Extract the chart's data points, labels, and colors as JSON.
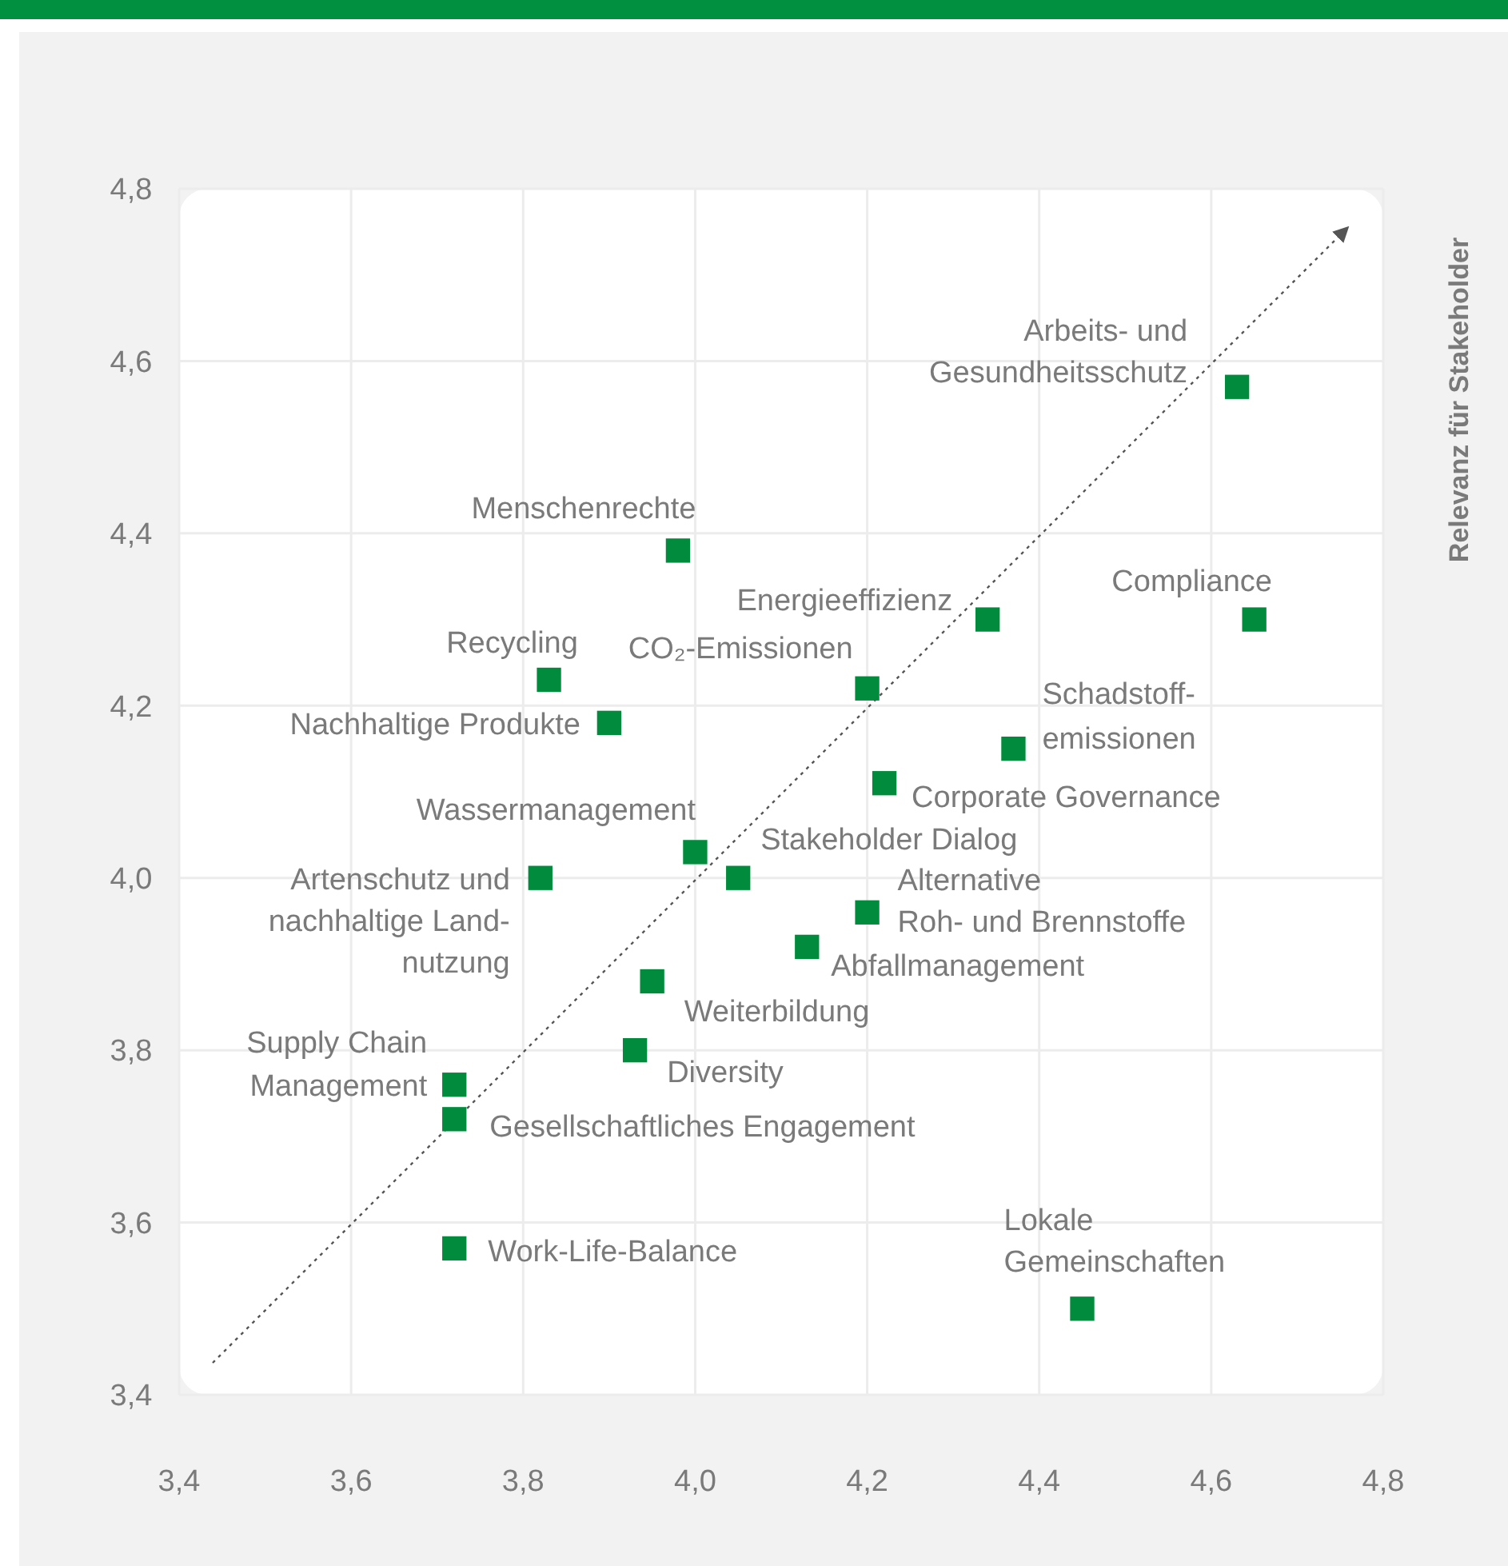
{
  "chart_data": {
    "type": "scatter",
    "ylabel": "Relevanz für Stakeholder",
    "marker": "square",
    "grid": true,
    "xlim": [
      3.4,
      4.8
    ],
    "ylim": [
      3.4,
      4.8
    ],
    "xticks": [
      {
        "value": 3.4,
        "label": "3,4"
      },
      {
        "value": 3.6,
        "label": "3,6"
      },
      {
        "value": 3.8,
        "label": "3,8"
      },
      {
        "value": 4.0,
        "label": "4,0"
      },
      {
        "value": 4.2,
        "label": "4,2"
      },
      {
        "value": 4.4,
        "label": "4,4"
      },
      {
        "value": 4.6,
        "label": "4,6"
      },
      {
        "value": 4.8,
        "label": "4,8"
      }
    ],
    "yticks": [
      {
        "value": 3.4,
        "label": "3,4"
      },
      {
        "value": 3.6,
        "label": "3,6"
      },
      {
        "value": 3.8,
        "label": "3,8"
      },
      {
        "value": 4.0,
        "label": "4,0"
      },
      {
        "value": 4.2,
        "label": "4,2"
      },
      {
        "value": 4.4,
        "label": "4,4"
      },
      {
        "value": 4.6,
        "label": "4,6"
      },
      {
        "value": 4.8,
        "label": "4,8"
      }
    ],
    "series": [
      {
        "color": "#008c3c",
        "x": [
          4.63,
          4.65,
          3.98,
          4.34,
          3.83,
          4.2,
          3.9,
          4.37,
          4.22,
          4.0,
          4.05,
          3.82,
          4.2,
          4.13,
          3.95,
          3.93,
          3.72,
          3.72,
          3.72,
          4.45
        ],
        "values": [
          4.57,
          4.3,
          4.38,
          4.3,
          4.23,
          4.22,
          4.18,
          4.15,
          4.11,
          4.03,
          4.0,
          4.0,
          3.96,
          3.92,
          3.88,
          3.8,
          3.76,
          3.72,
          3.57,
          3.5
        ]
      }
    ],
    "annotations": [
      {
        "text": "Arbeits- und\nGesundheitsschutz",
        "x": 4.63,
        "y": 4.57
      },
      {
        "text": "Compliance",
        "x": 4.65,
        "y": 4.3
      },
      {
        "text": "Menschenrechte",
        "x": 3.98,
        "y": 4.38
      },
      {
        "text": "Energieeffizienz",
        "x": 4.34,
        "y": 4.3
      },
      {
        "text": "Recycling",
        "x": 3.83,
        "y": 4.23
      },
      {
        "text": "CO₂-Emissionen",
        "x": 4.2,
        "y": 4.22
      },
      {
        "text": "Nachhaltige Produkte",
        "x": 3.9,
        "y": 4.18
      },
      {
        "text": "Schadstoff-\nemissionen",
        "x": 4.37,
        "y": 4.15
      },
      {
        "text": "Corporate Governance",
        "x": 4.22,
        "y": 4.11
      },
      {
        "text": "Wassermanagement",
        "x": 4.0,
        "y": 4.03
      },
      {
        "text": "Stakeholder Dialog",
        "x": 4.05,
        "y": 4.0
      },
      {
        "text": "Artenschutz und\nnachhaltige Land-\nnutzung",
        "x": 3.82,
        "y": 4.0
      },
      {
        "text": "Alternative\nRoh- und Brennstoffe",
        "x": 4.2,
        "y": 3.96
      },
      {
        "text": "Abfallmanagement",
        "x": 4.13,
        "y": 3.92
      },
      {
        "text": "Weiterbildung",
        "x": 3.95,
        "y": 3.88
      },
      {
        "text": "Diversity",
        "x": 3.93,
        "y": 3.8
      },
      {
        "text": "Supply Chain\nManagement",
        "x": 3.72,
        "y": 3.76
      },
      {
        "text": "Gesellschaftliches Engagement",
        "x": 3.72,
        "y": 3.72
      },
      {
        "text": "Work-Life-Balance",
        "x": 3.72,
        "y": 3.57
      },
      {
        "text": "Lokale\nGemeinschaften",
        "x": 4.45,
        "y": 3.5
      }
    ]
  }
}
